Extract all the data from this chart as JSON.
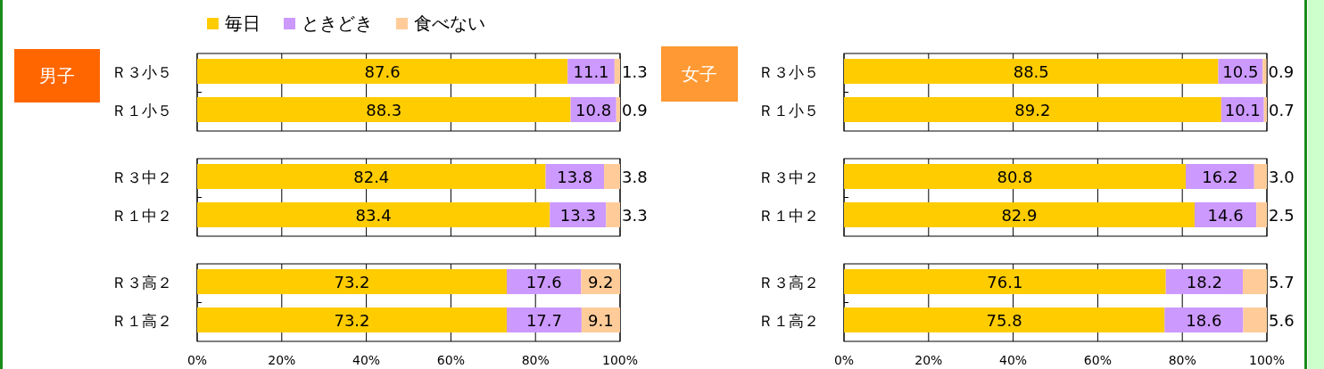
{
  "chart_data": [
    {
      "type": "bar",
      "orientation": "horizontal",
      "stacked": true,
      "title": "男子",
      "categories": [
        "Ｒ３小５",
        "Ｒ１小５",
        "Ｒ３中２",
        "Ｒ１中２",
        "Ｒ３高２",
        "Ｒ１高２"
      ],
      "series": [
        {
          "name": "毎日",
          "color": "#ffcc00",
          "values": [
            87.6,
            88.3,
            82.4,
            83.4,
            73.2,
            73.2
          ],
          "value_labels": [
            "87.6",
            "88.3",
            "82.4",
            "83.4",
            "73.2",
            "73.2"
          ]
        },
        {
          "name": "ときどき",
          "color": "#cc99ff",
          "values": [
            11.1,
            10.8,
            13.8,
            13.3,
            17.6,
            17.7
          ],
          "value_labels": [
            "11.1",
            "10.8",
            "13.8",
            "13.3",
            "17.6",
            "17.7"
          ]
        },
        {
          "name": "食べない",
          "color": "#ffcc99",
          "values": [
            1.3,
            0.9,
            3.8,
            3.3,
            9.2,
            9.1
          ],
          "value_labels": [
            "1.3",
            "0.9",
            "3.8",
            "3.3",
            "9.2",
            "9.1"
          ]
        }
      ],
      "xlim": [
        0,
        100
      ],
      "xticks": [
        {
          "value": 0,
          "label": "0%"
        },
        {
          "value": 20,
          "label": "20%"
        },
        {
          "value": 40,
          "label": "40%"
        },
        {
          "value": 60,
          "label": "60%"
        },
        {
          "value": 80,
          "label": "80%"
        },
        {
          "value": 100,
          "label": "100%"
        }
      ],
      "grid": "x",
      "legend": "top"
    },
    {
      "type": "bar",
      "orientation": "horizontal",
      "stacked": true,
      "title": "女子",
      "categories": [
        "Ｒ３小５",
        "Ｒ１小５",
        "Ｒ３中２",
        "Ｒ１中２",
        "Ｒ３高２",
        "Ｒ１高２"
      ],
      "series": [
        {
          "color": "#ffcc00",
          "values": [
            88.5,
            89.2,
            80.8,
            82.9,
            76.1,
            75.8
          ],
          "value_labels": [
            "88.5",
            "89.2",
            "80.8",
            "82.9",
            "76.1",
            "75.8"
          ]
        },
        {
          "color": "#cc99ff",
          "values": [
            10.5,
            10.1,
            16.2,
            14.6,
            18.2,
            18.6
          ],
          "value_labels": [
            "10.5",
            "10.1",
            "16.2",
            "14.6",
            "18.2",
            "18.6"
          ]
        },
        {
          "color": "#ffcc99",
          "values": [
            0.9,
            0.7,
            3.0,
            2.5,
            5.7,
            5.6
          ],
          "value_labels": [
            "0.9",
            "0.7",
            "3.0",
            "2.5",
            "5.7",
            "5.6"
          ]
        }
      ],
      "xlim": [
        0,
        100
      ],
      "xticks": [
        {
          "value": 0,
          "label": "0%"
        },
        {
          "value": 20,
          "label": "20%"
        },
        {
          "value": 40,
          "label": "40%"
        },
        {
          "value": 60,
          "label": "60%"
        },
        {
          "value": 80,
          "label": "80%"
        },
        {
          "value": 100,
          "label": "100%"
        }
      ],
      "grid": "x"
    }
  ]
}
